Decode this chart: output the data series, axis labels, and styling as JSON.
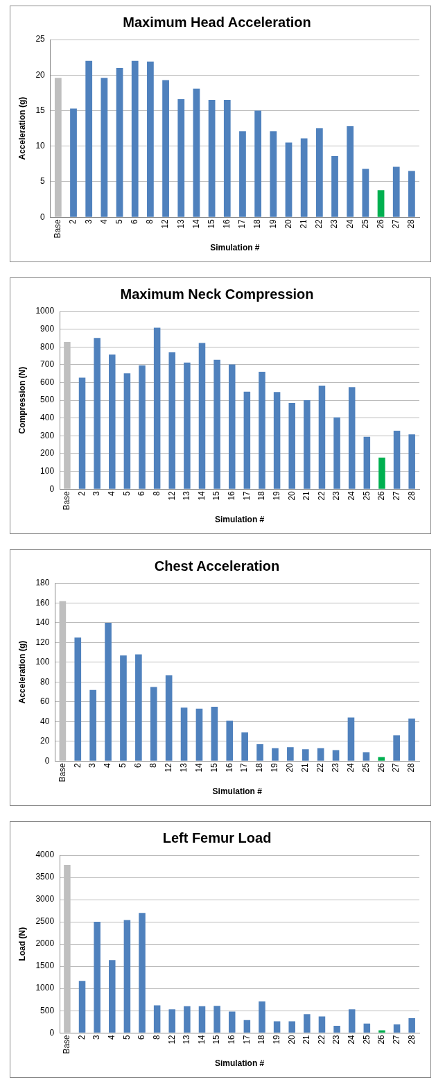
{
  "chart_data": [
    {
      "type": "bar",
      "title": "Maximum Head Acceleration",
      "xlabel": "Simulation #",
      "ylabel": "Acceleration (g)",
      "categories": [
        "Base",
        "2",
        "3",
        "4",
        "5",
        "6",
        "8",
        "12",
        "13",
        "14",
        "15",
        "16",
        "17",
        "18",
        "19",
        "20",
        "21",
        "22",
        "23",
        "24",
        "25",
        "26",
        "27",
        "28"
      ],
      "values": [
        19.6,
        15.3,
        22,
        19.6,
        21,
        22,
        21.9,
        19.3,
        16.6,
        18.1,
        16.5,
        16.5,
        12.1,
        15,
        12.1,
        10.5,
        11.1,
        12.5,
        8.6,
        12.8,
        6.8,
        3.8,
        7.1,
        6.5
      ],
      "colors": [
        "#bfbfbf",
        "#4f81bd",
        "#4f81bd",
        "#4f81bd",
        "#4f81bd",
        "#4f81bd",
        "#4f81bd",
        "#4f81bd",
        "#4f81bd",
        "#4f81bd",
        "#4f81bd",
        "#4f81bd",
        "#4f81bd",
        "#4f81bd",
        "#4f81bd",
        "#4f81bd",
        "#4f81bd",
        "#4f81bd",
        "#4f81bd",
        "#4f81bd",
        "#4f81bd",
        "#00b050",
        "#4f81bd",
        "#4f81bd"
      ],
      "ylim": [
        0,
        25
      ],
      "yticks": [
        0,
        5,
        10,
        15,
        20,
        25
      ],
      "grid": "y"
    },
    {
      "type": "bar",
      "title": "Maximum Neck Compression",
      "xlabel": "Simulation #",
      "ylabel": "Compression (N)",
      "categories": [
        "Base",
        "2",
        "3",
        "4",
        "5",
        "6",
        "8",
        "12",
        "13",
        "14",
        "15",
        "16",
        "17",
        "18",
        "19",
        "20",
        "21",
        "22",
        "23",
        "24",
        "25",
        "26",
        "27",
        "28"
      ],
      "values": [
        828,
        627,
        851,
        757,
        652,
        697,
        908,
        770,
        712,
        822,
        728,
        701,
        548,
        660,
        546,
        485,
        500,
        582,
        404,
        574,
        295,
        178,
        329,
        308
      ],
      "colors": [
        "#bfbfbf",
        "#4f81bd",
        "#4f81bd",
        "#4f81bd",
        "#4f81bd",
        "#4f81bd",
        "#4f81bd",
        "#4f81bd",
        "#4f81bd",
        "#4f81bd",
        "#4f81bd",
        "#4f81bd",
        "#4f81bd",
        "#4f81bd",
        "#4f81bd",
        "#4f81bd",
        "#4f81bd",
        "#4f81bd",
        "#4f81bd",
        "#4f81bd",
        "#4f81bd",
        "#00b050",
        "#4f81bd",
        "#4f81bd"
      ],
      "ylim": [
        0,
        1000
      ],
      "yticks": [
        0,
        100,
        200,
        300,
        400,
        500,
        600,
        700,
        800,
        900,
        1000
      ],
      "grid": "y"
    },
    {
      "type": "bar",
      "title": "Chest Acceleration",
      "xlabel": "Simulation #",
      "ylabel": "Acceleration (g)",
      "categories": [
        "Base",
        "2",
        "3",
        "4",
        "5",
        "6",
        "8",
        "12",
        "13",
        "14",
        "15",
        "16",
        "17",
        "18",
        "19",
        "20",
        "21",
        "22",
        "23",
        "24",
        "25",
        "26",
        "27",
        "28"
      ],
      "values": [
        162,
        125,
        72,
        140,
        107,
        108,
        75,
        87,
        54,
        53,
        55,
        41,
        29,
        17,
        13,
        14,
        12,
        13,
        11,
        44,
        9,
        4,
        26,
        43
      ],
      "colors": [
        "#bfbfbf",
        "#4f81bd",
        "#4f81bd",
        "#4f81bd",
        "#4f81bd",
        "#4f81bd",
        "#4f81bd",
        "#4f81bd",
        "#4f81bd",
        "#4f81bd",
        "#4f81bd",
        "#4f81bd",
        "#4f81bd",
        "#4f81bd",
        "#4f81bd",
        "#4f81bd",
        "#4f81bd",
        "#4f81bd",
        "#4f81bd",
        "#4f81bd",
        "#4f81bd",
        "#00b050",
        "#4f81bd",
        "#4f81bd"
      ],
      "ylim": [
        0,
        180
      ],
      "yticks": [
        0,
        20,
        40,
        60,
        80,
        100,
        120,
        140,
        160,
        180
      ],
      "grid": "y"
    },
    {
      "type": "bar",
      "title": "Left Femur Load",
      "xlabel": "Simulation #",
      "ylabel": "Load (N)",
      "categories": [
        "Base",
        "2",
        "3",
        "4",
        "5",
        "6",
        "8",
        "12",
        "13",
        "14",
        "15",
        "16",
        "17",
        "18",
        "19",
        "20",
        "21",
        "22",
        "23",
        "24",
        "25",
        "26",
        "27",
        "28"
      ],
      "values": [
        3780,
        1170,
        2500,
        1640,
        2540,
        2700,
        620,
        530,
        600,
        600,
        610,
        480,
        290,
        710,
        260,
        260,
        420,
        370,
        160,
        530,
        210,
        60,
        190,
        330
      ],
      "colors": [
        "#bfbfbf",
        "#4f81bd",
        "#4f81bd",
        "#4f81bd",
        "#4f81bd",
        "#4f81bd",
        "#4f81bd",
        "#4f81bd",
        "#4f81bd",
        "#4f81bd",
        "#4f81bd",
        "#4f81bd",
        "#4f81bd",
        "#4f81bd",
        "#4f81bd",
        "#4f81bd",
        "#4f81bd",
        "#4f81bd",
        "#4f81bd",
        "#4f81bd",
        "#4f81bd",
        "#00b050",
        "#4f81bd",
        "#4f81bd"
      ],
      "ylim": [
        0,
        4000
      ],
      "yticks": [
        0,
        500,
        1000,
        1500,
        2000,
        2500,
        3000,
        3500,
        4000
      ],
      "grid": "y"
    }
  ]
}
